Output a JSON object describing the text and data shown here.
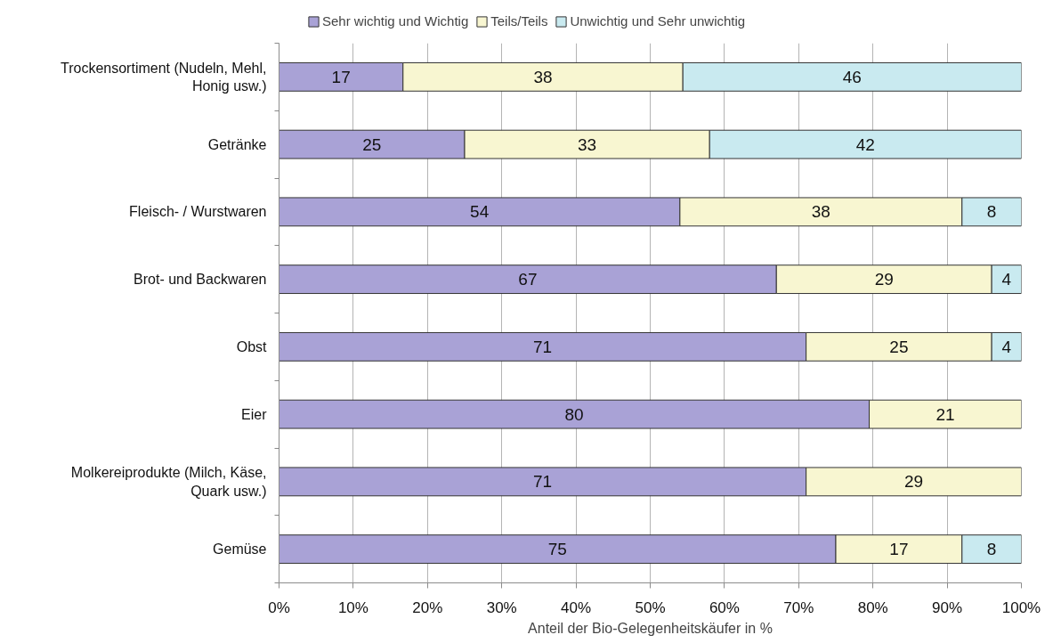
{
  "chart_data": {
    "type": "bar",
    "orientation": "horizontal",
    "stacked": true,
    "xlabel": "Anteil der Bio-Gelegenheitskäufer in %",
    "categories": [
      "Trockensortiment (Nudeln, Mehl, Honig usw.)",
      "Getränke",
      "Fleisch- / Wurstwaren",
      "Brot- und Backwaren",
      "Obst",
      "Eier",
      "Molkereiprodukte (Milch, Käse, Quark usw.)",
      "Gemüse"
    ],
    "series": [
      {
        "name": "Sehr wichtig und Wichtig",
        "color": "#a9a2d6",
        "values": [
          16.7,
          25,
          54,
          67,
          71,
          79.5,
          71,
          75
        ],
        "value_labels": [
          "17",
          "25",
          "54",
          "67",
          "71",
          "80",
          "71",
          "75"
        ]
      },
      {
        "name": "Teils/Teils",
        "color": "#f8f6d1",
        "values": [
          37.7,
          33,
          38,
          29,
          25,
          20.5,
          29,
          17
        ],
        "value_labels": [
          "38",
          "33",
          "38",
          "29",
          "25",
          "21",
          "29",
          "17"
        ]
      },
      {
        "name": "Unwichtig und Sehr unwichtig",
        "color": "#c9eaf0",
        "values": [
          45.6,
          42,
          8,
          4,
          4,
          null,
          null,
          8
        ],
        "value_labels": [
          "46",
          "42",
          "8",
          "4",
          "4",
          null,
          null,
          "8"
        ]
      }
    ],
    "xlim": [
      0,
      100
    ],
    "xticks": [
      {
        "value": 0,
        "label": "0%"
      },
      {
        "value": 10,
        "label": "10%"
      },
      {
        "value": 20,
        "label": "20%"
      },
      {
        "value": 30,
        "label": "30%"
      },
      {
        "value": 40,
        "label": "40%"
      },
      {
        "value": 50,
        "label": "50%"
      },
      {
        "value": 60,
        "label": "60%"
      },
      {
        "value": 70,
        "label": "70%"
      },
      {
        "value": 80,
        "label": "80%"
      },
      {
        "value": 90,
        "label": "90%"
      },
      {
        "value": 100,
        "label": "100%"
      }
    ],
    "grid": "x",
    "legend": "top"
  }
}
